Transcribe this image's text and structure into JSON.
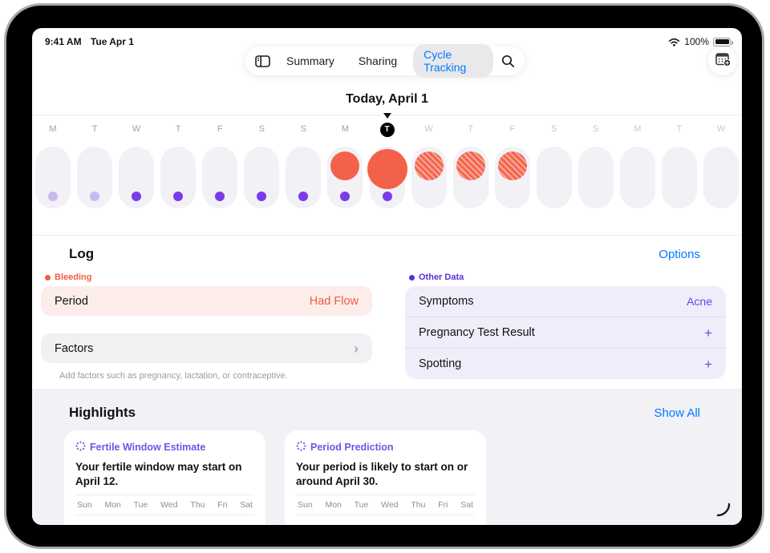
{
  "status_bar": {
    "time": "9:41 AM",
    "date": "Tue Apr 1",
    "battery_percent": "100%"
  },
  "nav": {
    "tabs": [
      {
        "label": "Summary",
        "active": false
      },
      {
        "label": "Sharing",
        "active": false
      },
      {
        "label": "Cycle Tracking",
        "active": true
      }
    ]
  },
  "today_heading": "Today, April 1",
  "day_strip": {
    "days": [
      {
        "letter": "M",
        "state": "past",
        "dot": "light",
        "circle": "none"
      },
      {
        "letter": "T",
        "state": "past",
        "dot": "light",
        "circle": "none"
      },
      {
        "letter": "W",
        "state": "past",
        "dot": "solid",
        "circle": "none"
      },
      {
        "letter": "T",
        "state": "past",
        "dot": "solid",
        "circle": "none"
      },
      {
        "letter": "F",
        "state": "past",
        "dot": "solid",
        "circle": "none"
      },
      {
        "letter": "S",
        "state": "past",
        "dot": "solid",
        "circle": "none"
      },
      {
        "letter": "S",
        "state": "past",
        "dot": "solid",
        "circle": "none"
      },
      {
        "letter": "M",
        "state": "past",
        "dot": "solid",
        "circle": "solid"
      },
      {
        "letter": "T",
        "state": "today",
        "dot": "solid",
        "circle": "solid-large"
      },
      {
        "letter": "W",
        "state": "future",
        "dot": "none",
        "circle": "hatched"
      },
      {
        "letter": "T",
        "state": "future",
        "dot": "none",
        "circle": "hatched"
      },
      {
        "letter": "F",
        "state": "future",
        "dot": "none",
        "circle": "hatched"
      },
      {
        "letter": "S",
        "state": "future",
        "dot": "none",
        "circle": "none"
      },
      {
        "letter": "S",
        "state": "future",
        "dot": "none",
        "circle": "none"
      },
      {
        "letter": "M",
        "state": "future",
        "dot": "none",
        "circle": "none"
      },
      {
        "letter": "T",
        "state": "future",
        "dot": "none",
        "circle": "none"
      },
      {
        "letter": "W",
        "state": "future",
        "dot": "none",
        "circle": "none"
      }
    ]
  },
  "log": {
    "title": "Log",
    "options_label": "Options",
    "bleeding_label": "Bleeding",
    "period_row": {
      "label": "Period",
      "value": "Had Flow"
    },
    "factors_row": {
      "label": "Factors"
    },
    "factors_caption": "Add factors such as pregnancy, lactation, or contraceptive.",
    "other_data_label": "Other Data",
    "other_rows": [
      {
        "label": "Symptoms",
        "value": "Acne"
      },
      {
        "label": "Pregnancy Test Result",
        "value": "+"
      },
      {
        "label": "Spotting",
        "value": "+"
      }
    ]
  },
  "highlights": {
    "title": "Highlights",
    "show_all_label": "Show All",
    "cards": [
      {
        "title": "Fertile Window Estimate",
        "body": "Your fertile window may start on April 12.",
        "weekdays": [
          "Sun",
          "Mon",
          "Tue",
          "Wed",
          "Thu",
          "Fri",
          "Sat"
        ]
      },
      {
        "title": "Period Prediction",
        "body": "Your period is likely to start on or around April 30.",
        "weekdays": [
          "Sun",
          "Mon",
          "Tue",
          "Wed",
          "Thu",
          "Fri",
          "Sat"
        ]
      }
    ]
  },
  "icons": {
    "sidebar_toggle": "sidebar-icon",
    "search": "search-icon",
    "calendar_add": "calendar-add-icon",
    "wifi": "wifi-icon",
    "battery": "battery-icon",
    "sparkle": "sparkle-icon",
    "today_marker": "triangle-down-marker"
  },
  "colors": {
    "accent_blue": "#007AFF",
    "coral": "#f4614a",
    "coral_text": "#f25b41",
    "period_row_bg": "#fcedea",
    "purple_accent": "#6c43e8",
    "purple_dot": "#7b3be8",
    "purple_dot_light": "#cbb8f2",
    "other_card_bg": "#f0edfb",
    "highlights_bg": "#f2f1f6",
    "day_pill_bg": "#f1f1f6"
  }
}
